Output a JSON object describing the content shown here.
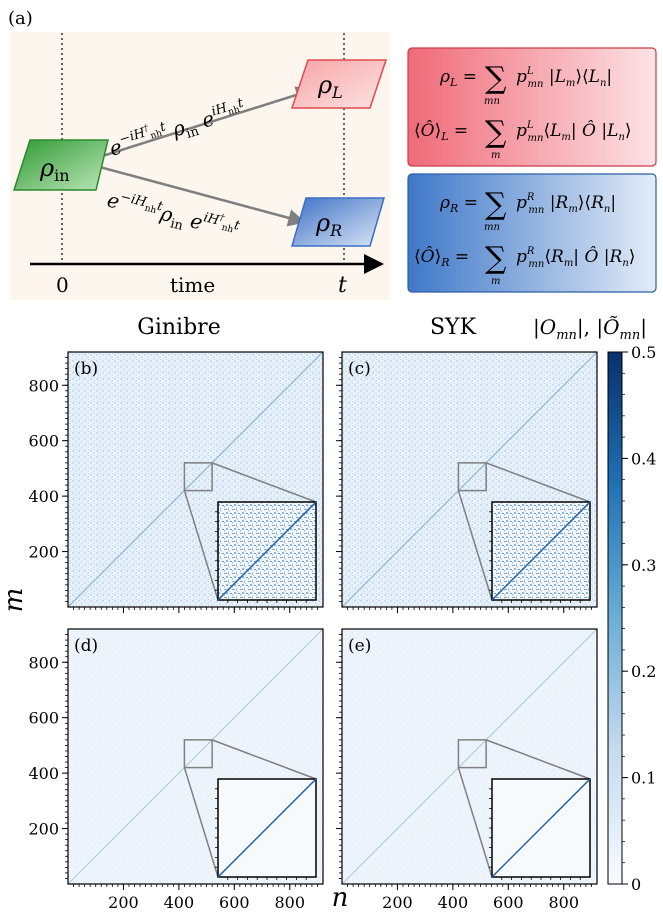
{
  "panel_a": {
    "label": "(a)",
    "input_state": "ρ_in",
    "output_left": "ρ_L",
    "output_right": "ρ_R",
    "evolution_top": "e^{−iH†_nh t} ρ_in e^{iH_nh t}",
    "evolution_bottom": "e^{−iH_nh t} ρ_in e^{iH†_nh t}",
    "time_axis_label": "time",
    "time_start": "0",
    "time_end": "t",
    "box_left": {
      "eq1": "ρ_L = Σ_mn p^L_mn |L_m⟩⟨L_n|",
      "eq2": "⟨Ô⟩_L = Σ_m p^L_mn ⟨L_m| Ô |L_n⟩",
      "color": "#f06a78"
    },
    "box_right": {
      "eq1": "ρ_R = Σ_mn p^R_mn |R_m⟩⟨R_n|",
      "eq2": "⟨Ô⟩_R = Σ_m p^R_mn ⟨R_m| Ô |R_n⟩",
      "color": "#3f78c8"
    },
    "colors": {
      "input": "#49b24a",
      "left": "#e8484c",
      "right": "#3a6fc4",
      "background": "#fcf6ee"
    }
  },
  "heatmaps": {
    "column_titles": [
      "Ginibre",
      "SYK"
    ],
    "colorbar_title": "|O_mn|, |Õ_mn|",
    "xlabel": "n",
    "ylabel": "m",
    "panels": [
      {
        "label": "(b)",
        "offdiag": "strong"
      },
      {
        "label": "(c)",
        "offdiag": "strong"
      },
      {
        "label": "(d)",
        "offdiag": "weak"
      },
      {
        "label": "(e)",
        "offdiag": "weak"
      }
    ]
  },
  "chart_data": {
    "type": "heatmap",
    "xlabel": "n",
    "ylabel": "m",
    "x_ticks": [
      200,
      400,
      600,
      800
    ],
    "y_ticks": [
      200,
      400,
      600,
      800
    ],
    "xlim": [
      0,
      920
    ],
    "ylim": [
      0,
      920
    ],
    "colorbar": {
      "label": "|O_mn|, |Õ_mn|",
      "min": 0,
      "max": 0.5,
      "ticks": [
        0,
        0.1,
        0.2,
        0.3,
        0.4,
        0.5
      ]
    },
    "zoom_window": [
      420,
      520
    ],
    "colormap": "Blues"
  }
}
